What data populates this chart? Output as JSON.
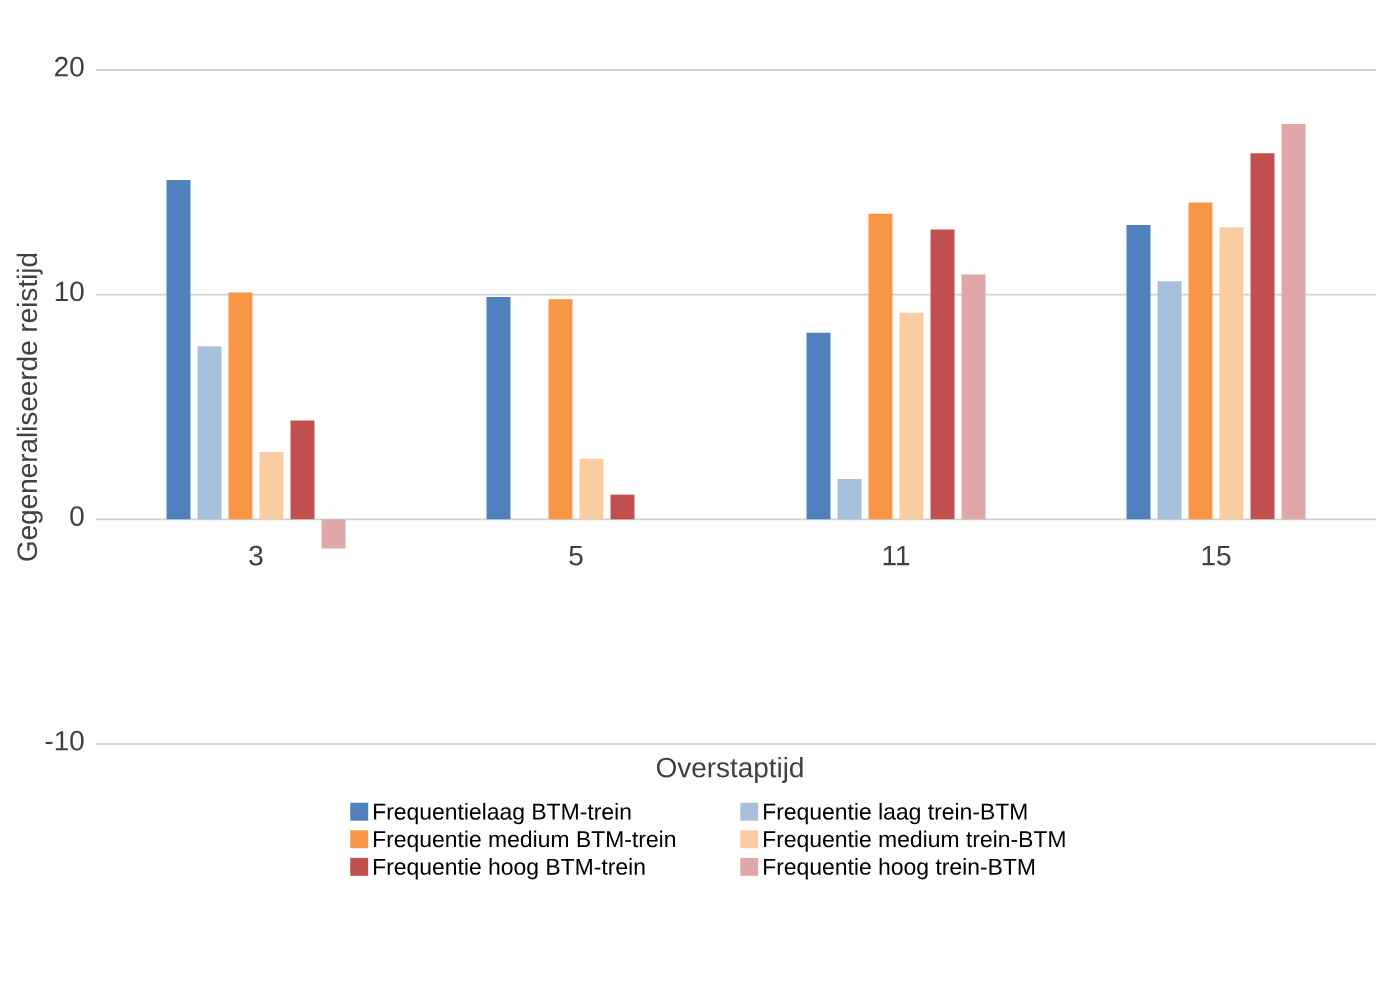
{
  "chart_data": {
    "type": "bar",
    "xlabel": "Overstaptijd",
    "ylabel": "Gegeneraliseerde reistijd",
    "categories": [
      "3",
      "5",
      "11",
      "15"
    ],
    "series": [
      {
        "name": "Frequentielaag BTM-trein",
        "color": "#4f81bd",
        "values": [
          15.1,
          9.9,
          8.3,
          13.1
        ]
      },
      {
        "name": "Frequentie laag trein-BTM",
        "color": "#a7c0de",
        "values": [
          7.7,
          null,
          1.8,
          10.6
        ]
      },
      {
        "name": "Frequentie medium BTM-trein",
        "color": "#f79646",
        "values": [
          10.1,
          9.8,
          13.6,
          14.1
        ]
      },
      {
        "name": "Frequentie medium trein-BTM",
        "color": "#fbcba2",
        "values": [
          3.0,
          2.7,
          9.2,
          13.0
        ]
      },
      {
        "name": "Frequentie hoog BTM-trein",
        "color": "#c0504d",
        "values": [
          4.4,
          1.1,
          12.9,
          16.3
        ]
      },
      {
        "name": "Frequentie hoog trein-BTM",
        "color": "#dfa8a6",
        "values": [
          -1.3,
          null,
          10.9,
          17.6
        ]
      }
    ],
    "ylim": [
      -10,
      20
    ],
    "yticks": [
      -10,
      0,
      10,
      20
    ],
    "grid": "y",
    "legend": "bottom"
  }
}
